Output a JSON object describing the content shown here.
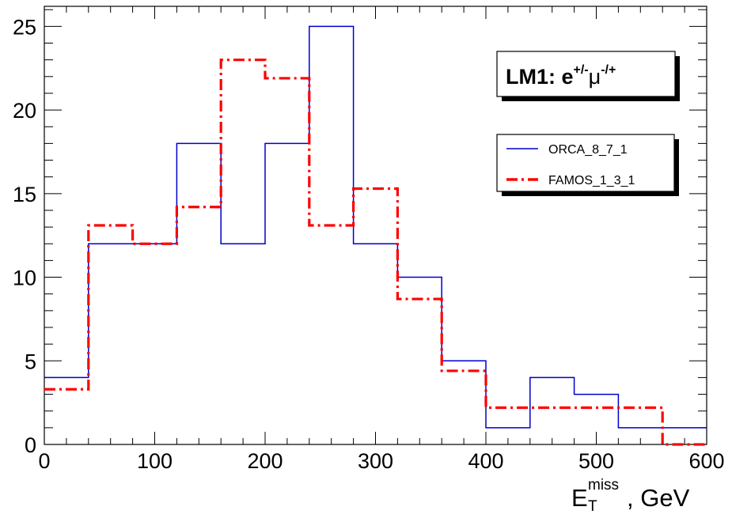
{
  "chart_data": {
    "type": "histogram",
    "title": "LM1:  e+/-μ-/+",
    "title_parts": {
      "prefix": "LM1:  e",
      "sup1": "+/-",
      "mu": "μ",
      "sup2": "-/+"
    },
    "xlabel": "E_T^miss, GeV",
    "xlabel_parts": {
      "main": "E",
      "sub": "T",
      "sup": "miss",
      "suffix": ", GeV"
    },
    "ylabel": "",
    "xlim": [
      0,
      600
    ],
    "ylim": [
      0,
      26.2
    ],
    "x_ticks": [
      0,
      100,
      200,
      300,
      400,
      500,
      600
    ],
    "x_tick_labels": [
      "0",
      "100",
      "200",
      "300",
      "400",
      "500",
      "600"
    ],
    "y_ticks": [
      0,
      5,
      10,
      15,
      20,
      25
    ],
    "y_tick_labels": [
      "0",
      "5",
      "10",
      "15",
      "20",
      "25"
    ],
    "grid": false,
    "legend_position": "top-right",
    "bin_edges": [
      0,
      40,
      80,
      120,
      160,
      200,
      240,
      280,
      320,
      360,
      400,
      440,
      480,
      520,
      560,
      600
    ],
    "series": [
      {
        "name": "ORCA_8_7_1",
        "color": "#0000cc",
        "line_style": "solid",
        "values": [
          4,
          12,
          12,
          18,
          12,
          18,
          25,
          12,
          10,
          5,
          1,
          4,
          3,
          1,
          1
        ]
      },
      {
        "name": "FAMOS_1_3_1",
        "color": "#ff0000",
        "line_style": "dash-dot",
        "values": [
          3.3,
          13.1,
          12.0,
          14.2,
          23.0,
          21.9,
          13.1,
          15.3,
          8.7,
          4.4,
          2.2,
          2.2,
          2.2,
          2.2,
          0
        ]
      }
    ]
  }
}
